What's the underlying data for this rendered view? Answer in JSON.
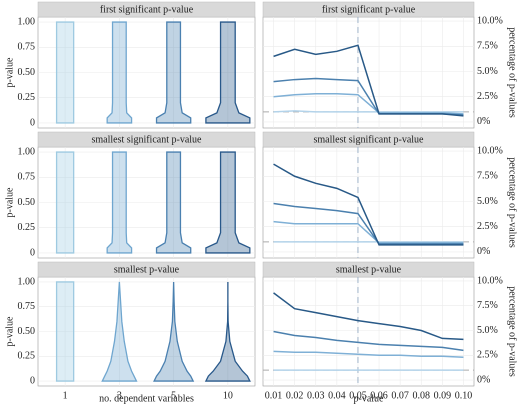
{
  "chart_data": [
    {
      "type": "violin",
      "title": "first significant p-value",
      "ylabel": "p-value",
      "ylim": [
        -0.05,
        1.05
      ],
      "yticks": [
        0,
        0.25,
        {
          "value": 0.5,
          "label": "0.50"
        },
        0.75,
        {
          "value": 1,
          "label": "1.00"
        }
      ],
      "density_y": [
        0,
        0.05,
        0.1,
        0.2,
        0.4,
        0.6,
        0.8,
        1
      ],
      "series": [
        {
          "color": "#9ecae1",
          "widths": [
            0.35,
            0.35,
            0.35,
            0.35,
            0.35,
            0.35,
            0.35,
            0.35
          ]
        },
        {
          "color": "#6fa6cf",
          "widths": [
            0.5,
            0.5,
            0.3,
            0.28,
            0.28,
            0.28,
            0.28,
            0.28
          ]
        },
        {
          "color": "#4a80b0",
          "widths": [
            0.7,
            0.7,
            0.35,
            0.28,
            0.28,
            0.28,
            0.28,
            0.28
          ]
        },
        {
          "color": "#28588a",
          "widths": [
            0.9,
            0.9,
            0.45,
            0.3,
            0.3,
            0.3,
            0.3,
            0.3
          ]
        }
      ]
    },
    {
      "type": "line",
      "title": "first significant p-value",
      "ylabel": "percentage of p-values",
      "x": [
        0.01,
        0.02,
        0.03,
        0.04,
        0.05,
        0.06,
        0.07,
        0.08,
        0.09,
        0.1
      ],
      "xlim": [
        0.005,
        0.105
      ],
      "ylim": [
        -0.6,
        10.4
      ],
      "yticks": [
        {
          "value": 0,
          "label": "0%"
        },
        {
          "value": 2.5,
          "label": "2.5%"
        },
        {
          "value": 5,
          "label": "5.0%"
        },
        {
          "value": 7.5,
          "label": "7.5%"
        },
        {
          "value": 10,
          "label": "10.0%"
        }
      ],
      "vline": 0.05,
      "hline": 1,
      "grid": true,
      "series": [
        {
          "color": "#b3d3ea",
          "values": [
            1.0,
            1.1,
            1.0,
            1.0,
            1.0,
            1.0,
            1.0,
            1.0,
            1.0,
            1.0
          ]
        },
        {
          "color": "#7fb0d6",
          "values": [
            2.5,
            2.7,
            2.8,
            2.8,
            2.7,
            0.9,
            0.9,
            0.9,
            0.9,
            0.8
          ]
        },
        {
          "color": "#4b80ae",
          "values": [
            4.0,
            4.2,
            4.3,
            4.2,
            4.1,
            0.8,
            0.8,
            0.8,
            0.8,
            0.7
          ]
        },
        {
          "color": "#285987",
          "values": [
            6.5,
            7.2,
            6.7,
            7.0,
            7.6,
            0.8,
            0.8,
            0.8,
            0.8,
            0.6
          ]
        }
      ]
    },
    {
      "type": "violin",
      "title": "smallest significant p-value",
      "ylabel": "p-value",
      "ylim": [
        -0.05,
        1.05
      ],
      "yticks": [
        0,
        0.25,
        {
          "value": 0.5,
          "label": "0.50"
        },
        0.75,
        {
          "value": 1,
          "label": "1.00"
        }
      ],
      "density_y": [
        0,
        0.05,
        0.1,
        0.2,
        0.4,
        0.6,
        0.8,
        1
      ],
      "series": [
        {
          "color": "#9ecae1",
          "widths": [
            0.35,
            0.35,
            0.35,
            0.35,
            0.35,
            0.35,
            0.35,
            0.35
          ]
        },
        {
          "color": "#6fa6cf",
          "widths": [
            0.5,
            0.5,
            0.3,
            0.28,
            0.28,
            0.28,
            0.28,
            0.28
          ]
        },
        {
          "color": "#4a80b0",
          "widths": [
            0.7,
            0.7,
            0.35,
            0.28,
            0.28,
            0.28,
            0.28,
            0.28
          ]
        },
        {
          "color": "#28588a",
          "widths": [
            0.9,
            0.9,
            0.45,
            0.3,
            0.3,
            0.3,
            0.3,
            0.3
          ]
        }
      ]
    },
    {
      "type": "line",
      "title": "smallest significant p-value",
      "ylabel": "percentage of p-values",
      "x": [
        0.01,
        0.02,
        0.03,
        0.04,
        0.05,
        0.06,
        0.07,
        0.08,
        0.09,
        0.1
      ],
      "xlim": [
        0.005,
        0.105
      ],
      "ylim": [
        -0.6,
        10.4
      ],
      "yticks": [
        {
          "value": 0,
          "label": "0%"
        },
        {
          "value": 2.5,
          "label": "2.5%"
        },
        {
          "value": 5,
          "label": "5.0%"
        },
        {
          "value": 7.5,
          "label": "7.5%"
        },
        {
          "value": 10,
          "label": "10.0%"
        }
      ],
      "vline": 0.05,
      "hline": 1,
      "grid": true,
      "series": [
        {
          "color": "#b3d3ea",
          "values": [
            1.0,
            1.0,
            1.0,
            1.0,
            1.0,
            1.0,
            1.0,
            1.0,
            1.0,
            1.0
          ]
        },
        {
          "color": "#7fb0d6",
          "values": [
            3.0,
            2.8,
            2.8,
            2.8,
            2.8,
            0.9,
            0.9,
            0.9,
            0.9,
            0.9
          ]
        },
        {
          "color": "#4b80ae",
          "values": [
            4.8,
            4.5,
            4.3,
            4.1,
            3.8,
            0.8,
            0.8,
            0.8,
            0.8,
            0.8
          ]
        },
        {
          "color": "#285987",
          "values": [
            8.7,
            7.5,
            6.8,
            6.3,
            5.4,
            0.7,
            0.7,
            0.7,
            0.7,
            0.7
          ]
        }
      ]
    },
    {
      "type": "violin",
      "title": "smallest p-value",
      "ylabel": "p-value",
      "xlabel": "no. dependent variables",
      "categories": [
        "1",
        "3",
        "5",
        "10"
      ],
      "ylim": [
        -0.05,
        1.05
      ],
      "yticks": [
        0,
        0.25,
        {
          "value": 0.5,
          "label": "0.50"
        },
        0.75,
        {
          "value": 1,
          "label": "1.00"
        }
      ],
      "density_y": [
        0,
        0.05,
        0.1,
        0.2,
        0.4,
        0.6,
        0.8,
        1
      ],
      "series": [
        {
          "color": "#9ecae1",
          "widths": [
            0.35,
            0.35,
            0.35,
            0.35,
            0.35,
            0.35,
            0.35,
            0.35
          ]
        },
        {
          "color": "#6fa6cf",
          "widths": [
            0.7,
            0.6,
            0.5,
            0.35,
            0.2,
            0.1,
            0.05,
            0
          ]
        },
        {
          "color": "#4a80b0",
          "widths": [
            0.8,
            0.7,
            0.55,
            0.35,
            0.15,
            0.05,
            0.02,
            0
          ]
        },
        {
          "color": "#28588a",
          "widths": [
            0.9,
            0.8,
            0.6,
            0.3,
            0.08,
            0.01,
            0,
            0
          ]
        }
      ]
    },
    {
      "type": "line",
      "title": "smallest p-value",
      "ylabel": "percentage of p-values",
      "xlabel": "p-value",
      "x": [
        0.01,
        0.02,
        0.03,
        0.04,
        0.05,
        0.06,
        0.07,
        0.08,
        0.09,
        0.1
      ],
      "xlim": [
        0.005,
        0.105
      ],
      "xticks": [
        0.01,
        0.02,
        0.03,
        0.04,
        0.05,
        0.06,
        0.07,
        0.08,
        0.09,
        {
          "value": 0.1,
          "label": "0.10"
        }
      ],
      "ylim": [
        -0.6,
        10.4
      ],
      "yticks": [
        {
          "value": 0,
          "label": "0%"
        },
        {
          "value": 2.5,
          "label": "2.5%"
        },
        {
          "value": 5,
          "label": "5.0%"
        },
        {
          "value": 7.5,
          "label": "7.5%"
        },
        {
          "value": 10,
          "label": "10.0%"
        }
      ],
      "vline": 0.05,
      "hline": 1,
      "grid": true,
      "series": [
        {
          "color": "#b3d3ea",
          "values": [
            1.0,
            1.0,
            1.0,
            1.0,
            1.0,
            1.0,
            1.0,
            1.0,
            1.0,
            1.0
          ]
        },
        {
          "color": "#7fb0d6",
          "values": [
            2.9,
            2.8,
            2.8,
            2.7,
            2.6,
            2.5,
            2.5,
            2.4,
            2.4,
            2.3
          ]
        },
        {
          "color": "#4b80ae",
          "values": [
            4.9,
            4.5,
            4.3,
            4.0,
            3.8,
            3.6,
            3.5,
            3.4,
            3.3,
            3.0
          ]
        },
        {
          "color": "#285987",
          "values": [
            8.8,
            7.2,
            6.8,
            6.4,
            6.0,
            5.7,
            5.4,
            5.0,
            4.2,
            4.1
          ]
        }
      ]
    }
  ]
}
